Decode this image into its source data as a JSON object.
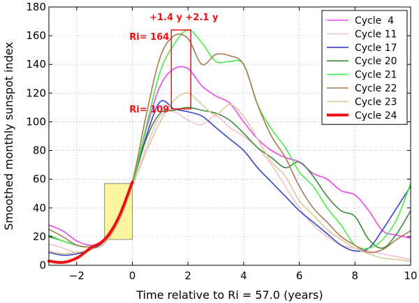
{
  "chart_data": {
    "type": "line",
    "title": "",
    "xlabel": "Time relative to Ri = 57.0 (years)",
    "ylabel": "Smoothed monthly sunspot index",
    "xlim": [
      -3,
      10
    ],
    "ylim": [
      0,
      180
    ],
    "xticks": [
      -2,
      0,
      2,
      4,
      6,
      8,
      10
    ],
    "yticks": [
      0,
      20,
      40,
      60,
      80,
      100,
      120,
      140,
      160,
      180
    ],
    "grid": true,
    "legend_position": "top-right",
    "series": [
      {
        "name": "Cycle  4",
        "color": "#ee44ee",
        "width": 1.6,
        "x": [
          -3,
          -2.5,
          -2,
          -1.5,
          -1,
          -0.5,
          0,
          0.5,
          1,
          1.5,
          2,
          2.5,
          3,
          3.5,
          4,
          4.5,
          5,
          5.5,
          6,
          6.5,
          7,
          7.5,
          8,
          8.5,
          9,
          9.5,
          10
        ],
        "y": [
          28,
          24,
          17,
          14,
          17,
          30,
          58,
          95,
          125,
          137,
          137,
          125,
          118,
          113,
          100,
          88,
          80,
          75,
          72,
          64,
          60,
          52,
          49,
          38,
          24,
          21,
          19
        ]
      },
      {
        "name": "Cycle 11",
        "color": "#f4c0cc",
        "width": 1.6,
        "x": [
          -3,
          -2.5,
          -2,
          -1.5,
          -1,
          -0.5,
          0,
          0.5,
          1,
          1.5,
          2,
          2.5,
          3,
          3.5,
          4,
          4.5,
          5,
          5.5,
          6,
          6.5,
          7,
          7.5,
          8,
          8.5,
          9,
          9.5,
          10
        ],
        "y": [
          15,
          12,
          9,
          11,
          16,
          32,
          55,
          82,
          104,
          107,
          101,
          98,
          104,
          96,
          90,
          82,
          70,
          55,
          40,
          28,
          20,
          14,
          12,
          10,
          8,
          6,
          4
        ]
      },
      {
        "name": "Cycle 17",
        "color": "#3344cc",
        "width": 1.6,
        "x": [
          -3,
          -2.5,
          -2,
          -1.5,
          -1,
          -0.5,
          0,
          0.5,
          1,
          1.5,
          2,
          2.5,
          3,
          3.5,
          4,
          4.5,
          5,
          5.5,
          6,
          6.5,
          7,
          7.5,
          8,
          8.5,
          9,
          9.5,
          10
        ],
        "y": [
          9,
          7,
          8,
          11,
          17,
          32,
          58,
          90,
          114,
          109,
          107,
          104,
          96,
          88,
          80,
          68,
          58,
          48,
          38,
          30,
          22,
          14,
          10,
          12,
          25,
          40,
          55
        ]
      },
      {
        "name": "Cycle 20",
        "color": "#3a8a3a",
        "width": 1.6,
        "x": [
          -3,
          -2.5,
          -2,
          -1.5,
          -1,
          -0.5,
          0,
          0.5,
          1,
          1.5,
          2,
          2.5,
          3,
          3.5,
          4,
          4.5,
          5,
          5.5,
          6,
          6.5,
          7,
          7.5,
          8,
          8.5,
          9,
          9.5,
          10
        ],
        "y": [
          20,
          17,
          14,
          13,
          18,
          32,
          57,
          88,
          106,
          108,
          110,
          108,
          106,
          101,
          92,
          82,
          75,
          68,
          72,
          62,
          48,
          38,
          34,
          18,
          12,
          22,
          38
        ]
      },
      {
        "name": "Cycle 21",
        "color": "#44ee44",
        "width": 1.6,
        "x": [
          -3,
          -2.5,
          -2,
          -1.5,
          -1,
          -0.5,
          0,
          0.5,
          1,
          1.5,
          2,
          2.5,
          3,
          3.5,
          4,
          4.5,
          5,
          5.5,
          6,
          6.5,
          7,
          7.5,
          8,
          8.5,
          9,
          9.5,
          10
        ],
        "y": [
          21,
          17,
          14,
          13,
          17,
          30,
          57,
          97,
          135,
          154,
          164,
          155,
          142,
          142,
          140,
          112,
          95,
          82,
          65,
          55,
          40,
          28,
          14,
          12,
          18,
          32,
          57
        ]
      },
      {
        "name": "Cycle 22",
        "color": "#a87850",
        "width": 1.6,
        "x": [
          -3,
          -2.5,
          -2,
          -1.5,
          -1,
          -0.5,
          0,
          0.5,
          1,
          1.5,
          2,
          2.5,
          3,
          3.5,
          4,
          4.5,
          5,
          5.5,
          6,
          6.5,
          7,
          7.5,
          8,
          8.5,
          9,
          9.5,
          10
        ],
        "y": [
          25,
          20,
          14,
          13,
          17,
          30,
          58,
          105,
          145,
          160,
          158,
          140,
          147,
          146,
          140,
          112,
          90,
          75,
          55,
          40,
          30,
          20,
          14,
          9,
          11,
          18,
          24
        ]
      },
      {
        "name": "Cycle 23",
        "color": "#d8c898",
        "width": 1.6,
        "x": [
          -3,
          -2.5,
          -2,
          -1.5,
          -1,
          -0.5,
          0,
          0.5,
          1,
          1.5,
          2,
          2.5,
          3,
          3.5,
          4,
          4.5,
          5,
          5.5,
          6,
          6.5,
          7,
          7.5,
          8,
          8.5,
          9,
          9.5,
          10
        ],
        "y": [
          10,
          8,
          9,
          11,
          15,
          30,
          55,
          79,
          100,
          115,
          120,
          112,
          105,
          112,
          104,
          88,
          72,
          62,
          45,
          35,
          25,
          18,
          12,
          8,
          5,
          4,
          3
        ]
      },
      {
        "name": "Cycle 24",
        "color": "#ee1111",
        "width": 4,
        "x": [
          -3,
          -2.5,
          -2,
          -1.5,
          -1,
          -0.5,
          0
        ],
        "y": [
          3,
          2,
          5,
          12,
          18,
          33,
          58
        ]
      }
    ],
    "annotations": {
      "box_low": {
        "x": [
          -1,
          0
        ],
        "y": [
          18,
          57
        ]
      },
      "box_high": {
        "x": [
          1.4,
          2.1
        ],
        "y": [
          109,
          164
        ]
      },
      "label_shift": "+1.4 y +2.1 y",
      "label_high": "Ri= 164",
      "label_low": "Ri= 109"
    }
  }
}
